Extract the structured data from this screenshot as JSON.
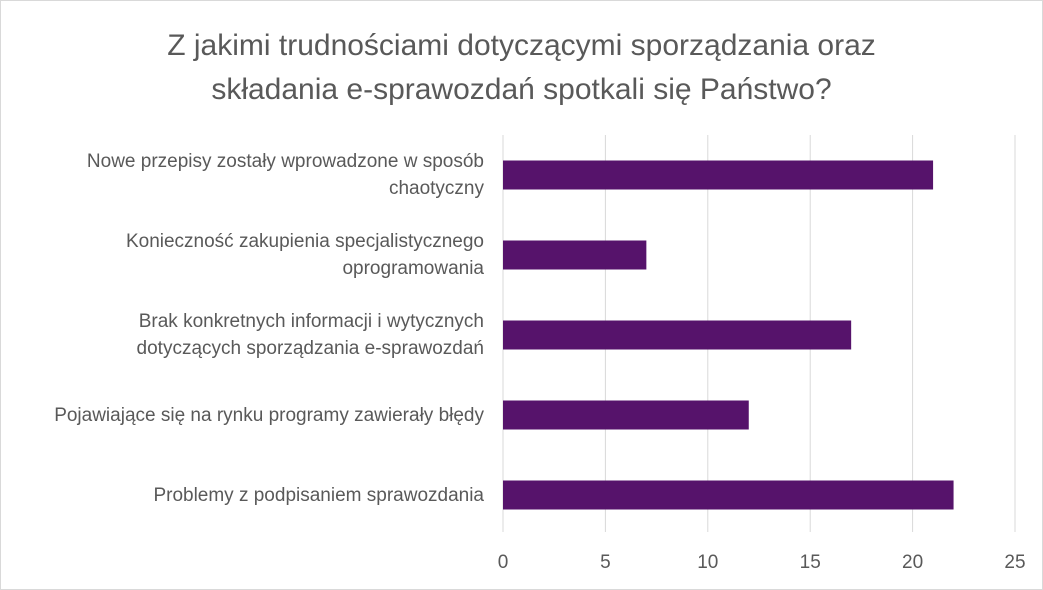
{
  "chart_data": {
    "type": "bar",
    "orientation": "horizontal",
    "title_lines": [
      "Z jakimi trudnościami dotyczącymi sporządzania oraz",
      "składania e-sprawozdań spotkali się Państwo?"
    ],
    "categories": [
      {
        "lines": [
          "Nowe przepisy zostały wprowadzone w sposób",
          "chaotyczny"
        ]
      },
      {
        "lines": [
          "Konieczność zakupienia specjalistycznego",
          "oprogramowania"
        ]
      },
      {
        "lines": [
          "Brak konkretnych informacji i wytycznych",
          "dotyczących sporządzania e-sprawozdań"
        ]
      },
      {
        "lines": [
          "Pojawiające się na rynku programy zawierały błędy"
        ]
      },
      {
        "lines": [
          "Problemy z podpisaniem sprawozdania"
        ]
      }
    ],
    "values": [
      21,
      7,
      17,
      12,
      22
    ],
    "xlim": [
      0,
      25
    ],
    "xticks": [
      0,
      5,
      10,
      15,
      20,
      25
    ],
    "grid": true,
    "bar_color": "#56136b",
    "grid_color": "#d9d9d9",
    "text_color": "#595959"
  }
}
